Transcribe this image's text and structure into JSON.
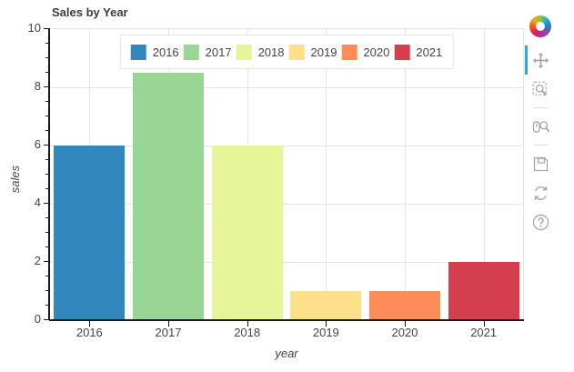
{
  "chart_data": {
    "type": "bar",
    "title": "Sales by Year",
    "xlabel": "year",
    "ylabel": "sales",
    "categories": [
      "2016",
      "2017",
      "2018",
      "2019",
      "2020",
      "2021"
    ],
    "values": [
      6,
      8.5,
      6,
      1,
      1,
      2
    ],
    "bar_colors": [
      "#3288bd",
      "#99d594",
      "#e6f598",
      "#fee08b",
      "#fc8d59",
      "#d53e4f"
    ],
    "ylim": [
      0,
      10
    ],
    "yticks": [
      0,
      2,
      4,
      6,
      8,
      10
    ],
    "y_minor_tick_step": 0.5,
    "grid": true,
    "grid_color": "#e5e5e5",
    "legend": {
      "position": "top-center",
      "labels": [
        "2016",
        "2017",
        "2018",
        "2019",
        "2020",
        "2021"
      ]
    }
  },
  "toolbar": {
    "logo": "bokeh-logo",
    "active_tool": "pan",
    "active_indicator_color": "#26a9e0",
    "icon_color": "#a6a6a6",
    "tools": [
      {
        "icon": "pan-icon",
        "id": "pan",
        "active": true,
        "separator_after": false
      },
      {
        "icon": "box-zoom-icon",
        "id": "box-zoom",
        "active": false,
        "separator_after": true
      },
      {
        "icon": "wheel-zoom-icon",
        "id": "wheel-zoom",
        "active": false,
        "separator_after": true
      },
      {
        "icon": "save-icon",
        "id": "save",
        "active": false,
        "separator_after": false
      },
      {
        "icon": "reset-icon",
        "id": "reset",
        "active": false,
        "separator_after": false
      },
      {
        "icon": "help-icon",
        "id": "help",
        "active": false,
        "separator_after": false
      }
    ]
  }
}
